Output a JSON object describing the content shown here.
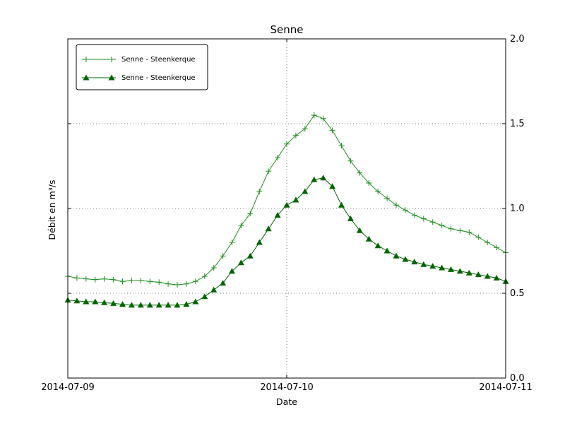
{
  "figure": {
    "title": "Senne",
    "xlabel": "Date",
    "ylabel": "Débit en m³/s"
  },
  "legend": {
    "items": [
      {
        "label": "Senne - Steenkerque",
        "marker": "plus",
        "color": "#1e8f1e"
      },
      {
        "label": "Senne - Steenkerque",
        "marker": "triangle-filled",
        "color": "#006400"
      }
    ]
  },
  "chart_data": {
    "type": "line",
    "title": "Senne",
    "xlabel": "Date",
    "ylabel": "Débit en m³/s",
    "x_tick_labels": [
      "2014-07-09",
      "2014-07-10",
      "2014-07-11"
    ],
    "y_tick_labels": [
      "0.0",
      "0.5",
      "1.0",
      "1.5",
      "2.0"
    ],
    "y_tick_values": [
      0,
      0.5,
      1.0,
      1.5,
      2.0
    ],
    "x_tick_hours": [
      0,
      24,
      48
    ],
    "x_total_hours": 48,
    "ylim": [
      0,
      2
    ],
    "grid": true,
    "grid_y_values": [
      0.5,
      1.0,
      1.5
    ],
    "grid_x_hours": [
      24
    ],
    "legend_position": "upper-left",
    "series": [
      {
        "name": "Senne - Steenkerque",
        "marker": "plus",
        "color": "#1e8f1e",
        "x_start_hour": 0,
        "x_step_hours": 1,
        "values": [
          0.6,
          0.59,
          0.585,
          0.58,
          0.585,
          0.58,
          0.57,
          0.575,
          0.575,
          0.57,
          0.565,
          0.555,
          0.55,
          0.555,
          0.57,
          0.6,
          0.65,
          0.72,
          0.8,
          0.9,
          0.97,
          1.1,
          1.22,
          1.3,
          1.38,
          1.43,
          1.47,
          1.55,
          1.53,
          1.46,
          1.37,
          1.28,
          1.21,
          1.15,
          1.1,
          1.06,
          1.02,
          0.99,
          0.96,
          0.94,
          0.92,
          0.9,
          0.88,
          0.87,
          0.86,
          0.83,
          0.8,
          0.77,
          0.74
        ]
      },
      {
        "name": "Senne - Steenkerque",
        "marker": "triangle-filled",
        "color": "#006400",
        "x_start_hour": 0,
        "x_step_hours": 1,
        "values": [
          0.46,
          0.455,
          0.45,
          0.45,
          0.445,
          0.44,
          0.435,
          0.43,
          0.43,
          0.43,
          0.43,
          0.43,
          0.43,
          0.435,
          0.45,
          0.48,
          0.52,
          0.56,
          0.63,
          0.68,
          0.72,
          0.8,
          0.88,
          0.96,
          1.02,
          1.05,
          1.1,
          1.17,
          1.18,
          1.13,
          1.02,
          0.94,
          0.87,
          0.82,
          0.78,
          0.75,
          0.72,
          0.7,
          0.685,
          0.67,
          0.66,
          0.65,
          0.64,
          0.63,
          0.62,
          0.61,
          0.6,
          0.59,
          0.57
        ]
      }
    ]
  }
}
